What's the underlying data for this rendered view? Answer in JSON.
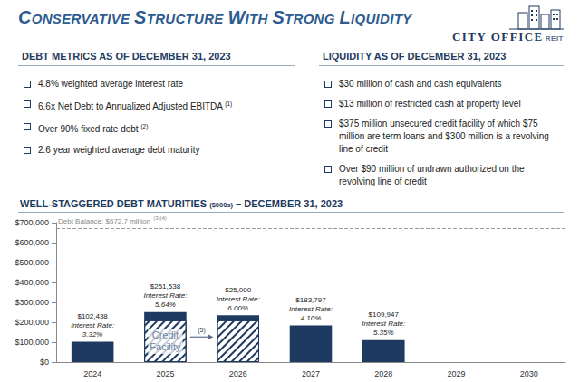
{
  "header": {
    "title": "CONSERVATIVE STRUCTURE WITH STRONG LIQUIDITY",
    "logo": {
      "name": "CITY OFFICE",
      "suffix": "REIT"
    }
  },
  "panels": [
    {
      "title": "DEBT METRICS AS OF DECEMBER 31, 2023",
      "bullets": [
        {
          "text": "4.8% weighted average interest rate"
        },
        {
          "text": "6.6x Net Debt to Annualized Adjusted EBITDA",
          "footnote": "(1)"
        },
        {
          "text": "Over 90% fixed rate debt",
          "footnote": "(2)"
        },
        {
          "text": "2.6 year weighted average debt maturity"
        }
      ]
    },
    {
      "title": "LIQUIDITY AS OF DECEMBER 31, 2023",
      "bullets": [
        {
          "text": "$30 million of cash and cash equivalents"
        },
        {
          "text": "$13 million of restricted cash at property level"
        },
        {
          "text": "$375 million unsecured credit facility of which $75 million are term loans and $300 million is a revolving line of credit"
        },
        {
          "text": "Over $90 million of undrawn authorized on the revolving line of credit"
        }
      ]
    }
  ],
  "chart_data": {
    "type": "bar",
    "stacked": true,
    "title": "WELL-STAGGERED DEBT MATURITIES",
    "title_unit": "($000s)",
    "title_suffix": "– DECEMBER 31, 2023",
    "categories": [
      "2024",
      "2025",
      "2026",
      "2027",
      "2028",
      "2029",
      "2030"
    ],
    "series": [
      {
        "name": "Credit Facility",
        "color": "#1f3a60",
        "marker": "hatched",
        "values": [
          null,
          210000,
          210000,
          null,
          null,
          null,
          null
        ]
      },
      {
        "color": "#1f3a60",
        "values": [
          102438,
          41538,
          25000,
          183797,
          109947,
          null,
          null
        ]
      }
    ],
    "bar_text": [
      {
        "series": "Credit Facility",
        "category": "2025",
        "text": "Credit Facility"
      }
    ],
    "annotations": [
      {
        "category": "2024",
        "text": [
          "$102,438",
          "Interest Rate:",
          "3.32%"
        ]
      },
      {
        "category": "2025",
        "text": [
          "$251,538",
          "Interest Rate:",
          "5.64%"
        ]
      },
      {
        "category": "2026",
        "text": [
          "$25,000",
          "Interest Rate:",
          "6.00%"
        ]
      },
      {
        "category": "2027",
        "text": [
          "$183,797",
          "Interest Rate:",
          "4.10%"
        ]
      },
      {
        "category": "2028",
        "text": [
          "$109,947",
          "Interest Rate:",
          "5.35%"
        ]
      }
    ],
    "arrows": [
      {
        "from": "2025",
        "to": "2026",
        "label": "(5)"
      }
    ],
    "reference_lines": [
      {
        "value": 672700,
        "label": "Debt Balance: $672.7 million",
        "footnote": "(3)(4)",
        "line_style": "dashed"
      }
    ],
    "ylim": [
      0,
      700000
    ],
    "yticks": [
      {
        "value": 0,
        "label": "$0"
      },
      {
        "value": 100000,
        "label": "$100,000"
      },
      {
        "value": 200000,
        "label": "$200,000"
      },
      {
        "value": 300000,
        "label": "$300,000"
      },
      {
        "value": 400000,
        "label": "$400,000"
      },
      {
        "value": 500000,
        "label": "$500,000"
      },
      {
        "value": 600000,
        "label": "$600,000"
      },
      {
        "value": 700000,
        "label": "$700,000"
      }
    ],
    "grid": false
  }
}
